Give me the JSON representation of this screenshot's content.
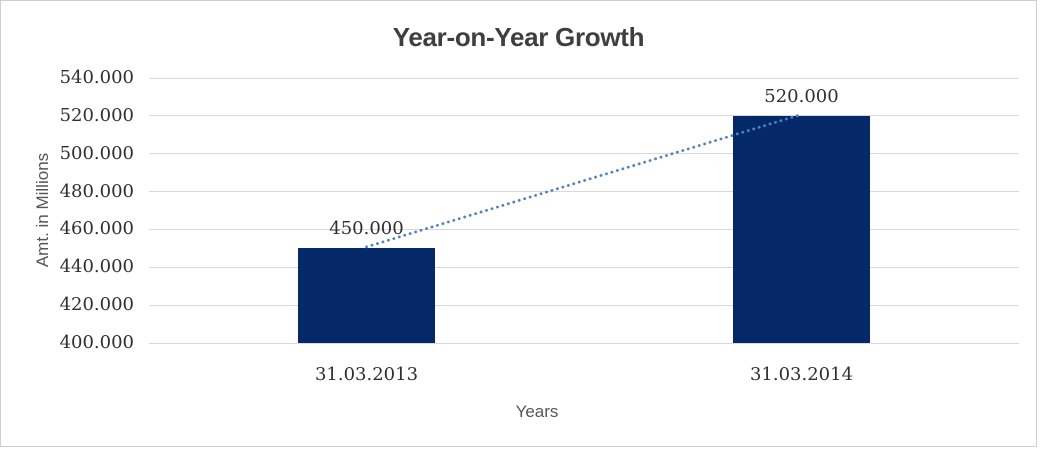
{
  "chart_data": {
    "type": "bar",
    "title": "Year-on-Year Growth",
    "xlabel": "Years",
    "ylabel": "Amt. in Millions",
    "categories": [
      "31.03.2013",
      "31.03.2014"
    ],
    "values": [
      450000,
      520000
    ],
    "value_labels": [
      "450.000",
      "520.000"
    ],
    "ylim": [
      400000,
      540000
    ],
    "ytick_step": 20000,
    "ytick_values": [
      400000,
      420000,
      440000,
      460000,
      480000,
      500000,
      520000,
      540000
    ],
    "ytick_labels": [
      "400.000",
      "420.000",
      "440.000",
      "460.000",
      "480.000",
      "500.000",
      "520.000",
      "540.000"
    ],
    "grid": "horizontal",
    "legend_position": "none",
    "trendline": {
      "type": "linear",
      "style": "dotted",
      "connects": "bar-tops"
    },
    "colors": {
      "bar": "#052968",
      "trendline": "#4f82c2",
      "gridline": "#d9d9d9",
      "title_text": "#3f3f3f",
      "number_text": "#303030",
      "axis_title_text": "#565656",
      "frame_border": "#cfcfcf",
      "background": "#ffffff"
    }
  }
}
